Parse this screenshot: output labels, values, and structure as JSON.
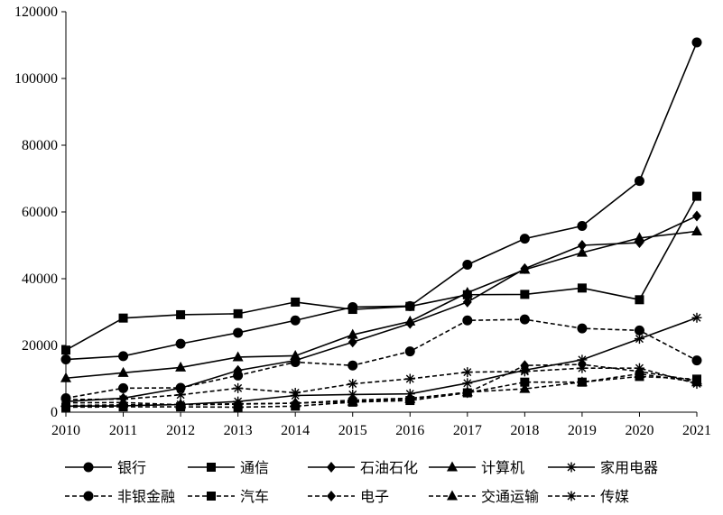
{
  "chart_data": {
    "type": "line",
    "x": [
      "2010",
      "2011",
      "2012",
      "2013",
      "2014",
      "2015",
      "2016",
      "2017",
      "2018",
      "2019",
      "2020",
      "2021"
    ],
    "ylim": [
      0,
      120000
    ],
    "yticks": [
      "0",
      "20000",
      "40000",
      "60000",
      "80000",
      "100000",
      "120000"
    ],
    "grid": false,
    "legend_position": "bottom",
    "series": [
      {
        "name": "银行",
        "marker": "circle",
        "dash": "solid",
        "values": [
          15800,
          16800,
          20500,
          23800,
          27500,
          31500,
          31800,
          44200,
          52000,
          55800,
          69300,
          110800
        ]
      },
      {
        "name": "通信",
        "marker": "square",
        "dash": "solid",
        "values": [
          18600,
          28200,
          29200,
          29500,
          33000,
          30800,
          31700,
          35200,
          35300,
          37200,
          33700,
          64700
        ]
      },
      {
        "name": "石油石化",
        "marker": "diamond",
        "dash": "solid",
        "values": [
          3200,
          4200,
          7200,
          12500,
          15500,
          21000,
          26600,
          33000,
          43000,
          50000,
          50800,
          58800
        ]
      },
      {
        "name": "计算机",
        "marker": "triangle",
        "dash": "solid",
        "values": [
          10200,
          11800,
          13400,
          16500,
          16900,
          23200,
          27200,
          35800,
          42700,
          47800,
          52200,
          54200
        ]
      },
      {
        "name": "家用电器",
        "marker": "star",
        "dash": "solid",
        "values": [
          1800,
          1900,
          2300,
          3200,
          5000,
          5300,
          5500,
          8700,
          12600,
          15700,
          22000,
          28300
        ]
      },
      {
        "name": "非银金融",
        "marker": "circle",
        "dash": "dashed",
        "values": [
          4200,
          7200,
          7300,
          11000,
          15000,
          14000,
          18200,
          27500,
          27800,
          25100,
          24500,
          15500
        ]
      },
      {
        "name": "汽车",
        "marker": "square",
        "dash": "dashed",
        "values": [
          1500,
          1600,
          1600,
          1500,
          1800,
          3000,
          3500,
          5800,
          9000,
          9000,
          10700,
          9900
        ]
      },
      {
        "name": "电子",
        "marker": "diamond",
        "dash": "dashed",
        "values": [
          2000,
          2200,
          2300,
          2500,
          2700,
          3600,
          4200,
          5800,
          14000,
          14300,
          12200,
          9400
        ]
      },
      {
        "name": "交通运输",
        "marker": "triangle",
        "dash": "dashed",
        "values": [
          2800,
          2900,
          2200,
          2400,
          2700,
          3200,
          4000,
          6000,
          7000,
          9000,
          11500,
          9000
        ]
      },
      {
        "name": "传媒",
        "marker": "star",
        "dash": "dashed",
        "values": [
          3800,
          3900,
          5200,
          7200,
          5800,
          8500,
          10000,
          12000,
          12200,
          13200,
          13200,
          8500
        ]
      }
    ]
  }
}
